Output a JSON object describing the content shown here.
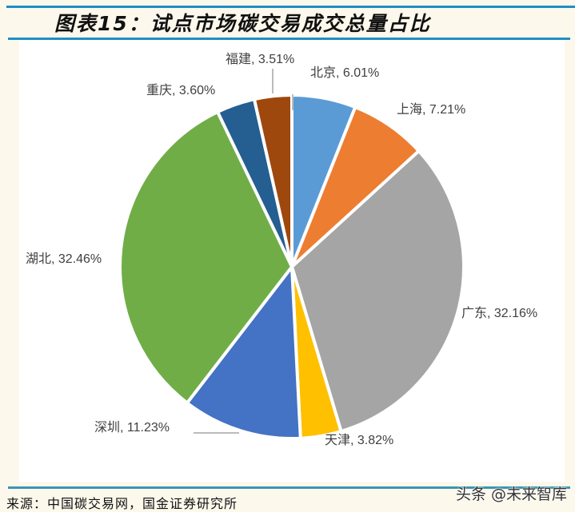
{
  "header": {
    "title": "图表15：试点市场碳交易成交总量占比"
  },
  "footer": {
    "source": "来源：中国碳交易网，国金证券研究所",
    "watermark": "头条 @未来智库"
  },
  "colors": {
    "rule": "#1d8fc4",
    "background": "#fdf8ec",
    "plot_bg": "#ffffff"
  },
  "chart_data": {
    "type": "pie",
    "title": "图表15：试点市场碳交易成交总量占比",
    "start_angle_deg": 0,
    "direction": "clockwise",
    "slices": [
      {
        "label": "北京",
        "value": 6.01,
        "color": "#5b9bd5",
        "display": "北京, 6.01%"
      },
      {
        "label": "上海",
        "value": 7.21,
        "color": "#ed7d31",
        "display": "上海, 7.21%"
      },
      {
        "label": "广东",
        "value": 32.16,
        "color": "#a5a5a5",
        "display": "广东, 32.16%"
      },
      {
        "label": "天津",
        "value": 3.82,
        "color": "#ffc000",
        "display": "天津, 3.82%"
      },
      {
        "label": "深圳",
        "value": 11.23,
        "color": "#4472c4",
        "display": "深圳, 11.23%"
      },
      {
        "label": "湖北",
        "value": 32.46,
        "color": "#70ad47",
        "display": "湖北, 32.46%"
      },
      {
        "label": "重庆",
        "value": 3.6,
        "color": "#255e91",
        "display": "重庆, 3.60%"
      },
      {
        "label": "福建",
        "value": 3.51,
        "color": "#9e480e",
        "display": "福建, 3.51%"
      }
    ],
    "units": "%"
  }
}
